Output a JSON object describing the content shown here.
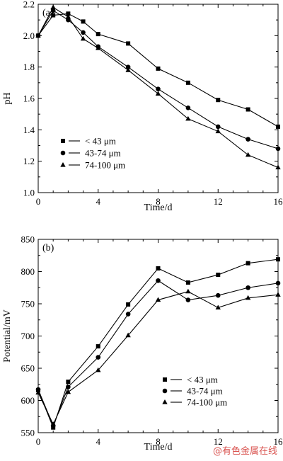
{
  "chart_data": [
    {
      "type": "line",
      "panel_label": "(a)",
      "xlabel": "Time/d",
      "ylabel": "pH",
      "xlim": [
        0,
        16
      ],
      "ylim": [
        1.0,
        2.2
      ],
      "xticks": [
        0,
        4,
        8,
        12,
        16
      ],
      "yticks": [
        1.0,
        1.2,
        1.4,
        1.6,
        1.8,
        2.0,
        2.2
      ],
      "ytick_labels": [
        "1.0",
        "1.2",
        "1.4",
        "1.6",
        "1.8",
        "2.0",
        "2.2"
      ],
      "legend_position": "bottom-left",
      "series": [
        {
          "name": "<43 μm",
          "marker": "square",
          "x": [
            0,
            1,
            2,
            3,
            4,
            6,
            8,
            10,
            12,
            14,
            16
          ],
          "y": [
            2.0,
            2.13,
            2.14,
            2.09,
            2.01,
            1.95,
            1.79,
            1.7,
            1.59,
            1.53,
            1.42
          ]
        },
        {
          "name": "43-74 μm",
          "marker": "circle",
          "x": [
            0,
            1,
            2,
            3,
            4,
            6,
            8,
            10,
            12,
            14,
            16
          ],
          "y": [
            2.0,
            2.16,
            2.1,
            2.02,
            1.93,
            1.8,
            1.66,
            1.54,
            1.42,
            1.34,
            1.28
          ]
        },
        {
          "name": "74-100 μm",
          "marker": "triangle",
          "x": [
            0,
            1,
            2,
            3,
            4,
            6,
            8,
            10,
            12,
            14,
            16
          ],
          "y": [
            2.0,
            2.18,
            2.12,
            1.98,
            1.92,
            1.78,
            1.63,
            1.47,
            1.39,
            1.24,
            1.16
          ]
        }
      ]
    },
    {
      "type": "line",
      "panel_label": "(b)",
      "xlabel": "Time/d",
      "ylabel": "Potential/mV",
      "xlim": [
        0,
        16
      ],
      "ylim": [
        550,
        850
      ],
      "xticks": [
        0,
        4,
        8,
        12,
        16
      ],
      "yticks": [
        550,
        600,
        650,
        700,
        750,
        800,
        850
      ],
      "ytick_labels": [
        "550",
        "600",
        "650",
        "700",
        "750",
        "800",
        "850"
      ],
      "legend_position": "bottom-right",
      "series": [
        {
          "name": "<43 μm",
          "marker": "square",
          "x": [
            0,
            1,
            2,
            4,
            6,
            8,
            10,
            12,
            14,
            16
          ],
          "y": [
            616,
            558,
            629,
            684,
            749,
            805,
            783,
            795,
            813,
            819
          ]
        },
        {
          "name": "43-74 μm",
          "marker": "circle",
          "x": [
            0,
            1,
            2,
            4,
            6,
            8,
            10,
            12,
            14,
            16
          ],
          "y": [
            617,
            561,
            621,
            667,
            734,
            786,
            756,
            763,
            775,
            782
          ]
        },
        {
          "name": "74-100 μm",
          "marker": "triangle",
          "x": [
            0,
            1,
            2,
            4,
            6,
            8,
            10,
            12,
            14,
            16
          ],
          "y": [
            612,
            563,
            613,
            647,
            701,
            756,
            769,
            744,
            759,
            764
          ]
        }
      ]
    }
  ],
  "legend_labels": {
    "s1": "< 43 μm",
    "s2": "43-74 μm",
    "s3": "74-100 μm"
  },
  "watermark": "@有色金属在线"
}
